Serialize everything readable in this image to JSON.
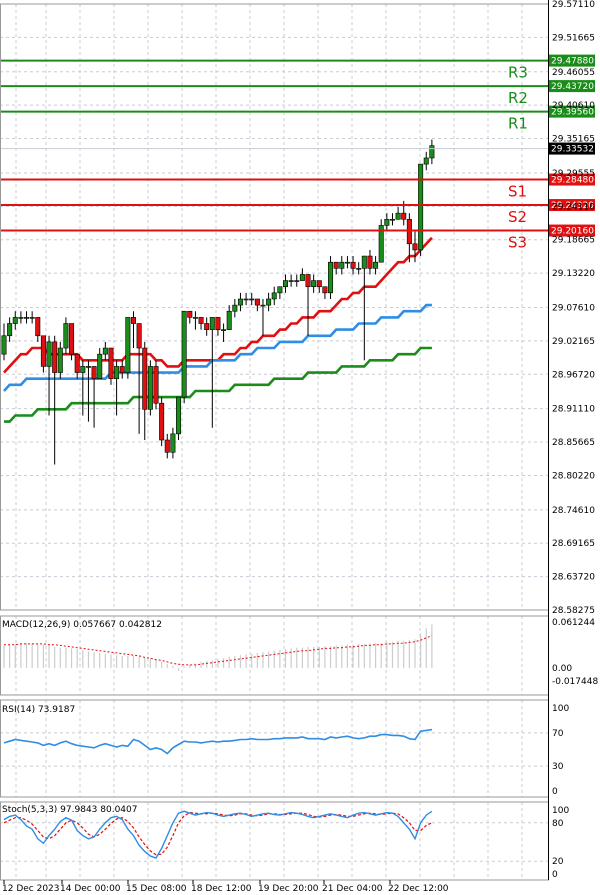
{
  "chart_data": [
    {
      "type": "candlestick",
      "title": "",
      "y_ticks": [
        "29.57110",
        "29.51665",
        "29.46055",
        "29.40610",
        "29.35165",
        "29.29555",
        "29.24110",
        "29.18665",
        "29.13220",
        "29.07610",
        "29.02165",
        "28.96720",
        "28.91110",
        "28.85665",
        "28.80220",
        "28.74610",
        "28.69165",
        "28.63720",
        "28.58275"
      ],
      "ylim": [
        28.58275,
        29.5711
      ],
      "current_price": "29.33532",
      "levels": [
        {
          "label": "R3",
          "value": "29.47880",
          "color": "#1a8c1a"
        },
        {
          "label": "R2",
          "value": "29.43720",
          "color": "#1a8c1a"
        },
        {
          "label": "R1",
          "value": "29.39560",
          "color": "#1a8c1a"
        },
        {
          "label": "S1",
          "value": "29.28480",
          "color": "#e01010"
        },
        {
          "label": "S2",
          "value": "29.24320",
          "color": "#e01010"
        },
        {
          "label": "S3",
          "value": "29.20160",
          "color": "#e01010"
        }
      ],
      "candles": [
        [
          29.0,
          29.03,
          28.99,
          29.05
        ],
        [
          29.03,
          29.05,
          29.02,
          29.06
        ],
        [
          29.05,
          29.06,
          29.04,
          29.07
        ],
        [
          29.06,
          29.06,
          29.05,
          29.07
        ],
        [
          29.06,
          29.06,
          29.05,
          29.07
        ],
        [
          29.06,
          29.06,
          29.05,
          29.07
        ],
        [
          29.06,
          29.03,
          29.02,
          29.06
        ],
        [
          29.03,
          28.98,
          28.97,
          29.03
        ],
        [
          28.98,
          29.02,
          28.9,
          29.03
        ],
        [
          29.02,
          28.97,
          28.82,
          29.03
        ],
        [
          28.97,
          29.01,
          28.96,
          29.02
        ],
        [
          29.01,
          29.05,
          29.0,
          29.06
        ],
        [
          29.05,
          29.0,
          28.99,
          29.05
        ],
        [
          29.0,
          28.97,
          28.96,
          29.0
        ],
        [
          28.97,
          28.98,
          28.9,
          28.99
        ],
        [
          28.98,
          28.98,
          28.89,
          28.99
        ],
        [
          28.98,
          28.96,
          28.88,
          28.98
        ],
        [
          28.96,
          29.0,
          28.96,
          29.01
        ],
        [
          29.0,
          29.01,
          28.99,
          29.02
        ],
        [
          29.01,
          28.96,
          28.95,
          29.01
        ],
        [
          28.96,
          28.98,
          28.9,
          28.99
        ],
        [
          28.98,
          28.97,
          28.96,
          28.99
        ],
        [
          28.97,
          29.06,
          28.96,
          29.06
        ],
        [
          29.06,
          29.05,
          29.01,
          29.07
        ],
        [
          29.05,
          29.01,
          28.87,
          29.05
        ],
        [
          29.01,
          28.91,
          28.86,
          29.02
        ],
        [
          28.91,
          28.98,
          28.9,
          28.99
        ],
        [
          28.98,
          28.92,
          28.91,
          28.99
        ],
        [
          28.92,
          28.86,
          28.85,
          28.93
        ],
        [
          28.86,
          28.84,
          28.83,
          28.87
        ],
        [
          28.84,
          28.87,
          28.83,
          28.88
        ],
        [
          28.87,
          28.93,
          28.86,
          28.93
        ],
        [
          28.93,
          29.07,
          28.92,
          29.07
        ],
        [
          29.07,
          29.06,
          29.05,
          29.07
        ],
        [
          29.06,
          29.06,
          29.04,
          29.07
        ],
        [
          29.06,
          29.05,
          29.04,
          29.06
        ],
        [
          29.05,
          29.04,
          29.03,
          29.06
        ],
        [
          29.04,
          29.06,
          28.88,
          29.06
        ],
        [
          29.06,
          29.04,
          29.03,
          29.06
        ],
        [
          29.04,
          29.04,
          29.02,
          29.05
        ],
        [
          29.04,
          29.07,
          29.04,
          29.08
        ],
        [
          29.07,
          29.08,
          29.06,
          29.09
        ],
        [
          29.08,
          29.09,
          29.07,
          29.1
        ],
        [
          29.09,
          29.09,
          29.08,
          29.1
        ],
        [
          29.09,
          29.09,
          29.08,
          29.1
        ],
        [
          29.09,
          29.08,
          29.07,
          29.09
        ],
        [
          29.08,
          29.08,
          29.03,
          29.09
        ],
        [
          29.08,
          29.09,
          29.07,
          29.1
        ],
        [
          29.09,
          29.1,
          29.08,
          29.11
        ],
        [
          29.1,
          29.11,
          29.09,
          29.11
        ],
        [
          29.11,
          29.12,
          29.1,
          29.13
        ],
        [
          29.12,
          29.12,
          29.11,
          29.13
        ],
        [
          29.12,
          29.12,
          29.11,
          29.13
        ],
        [
          29.12,
          29.13,
          29.12,
          29.14
        ],
        [
          29.13,
          29.11,
          29.03,
          29.13
        ],
        [
          29.11,
          29.12,
          29.1,
          29.13
        ],
        [
          29.12,
          29.11,
          29.1,
          29.12
        ],
        [
          29.11,
          29.1,
          29.09,
          29.11
        ],
        [
          29.1,
          29.15,
          29.09,
          29.16
        ],
        [
          29.15,
          29.14,
          29.13,
          29.15
        ],
        [
          29.14,
          29.15,
          29.13,
          29.16
        ],
        [
          29.15,
          29.15,
          29.14,
          29.16
        ],
        [
          29.15,
          29.14,
          29.13,
          29.16
        ],
        [
          29.14,
          29.14,
          29.13,
          29.15
        ],
        [
          29.14,
          29.16,
          28.99,
          29.16
        ],
        [
          29.16,
          29.14,
          29.13,
          29.17
        ],
        [
          29.14,
          29.15,
          29.13,
          29.16
        ],
        [
          29.15,
          29.21,
          29.15,
          29.22
        ],
        [
          29.21,
          29.22,
          29.2,
          29.23
        ],
        [
          29.22,
          29.22,
          29.21,
          29.23
        ],
        [
          29.22,
          29.23,
          29.22,
          29.24
        ],
        [
          29.23,
          29.22,
          29.21,
          29.25
        ],
        [
          29.22,
          29.18,
          29.15,
          29.23
        ],
        [
          29.18,
          29.17,
          29.15,
          29.2
        ],
        [
          29.17,
          29.31,
          29.16,
          29.31
        ],
        [
          29.31,
          29.32,
          29.3,
          29.33
        ],
        [
          29.32,
          29.34,
          29.31,
          29.35
        ]
      ],
      "ma_series": [
        {
          "color": "#e01010",
          "values": [
            28.97,
            28.98,
            28.99,
            29.0,
            29.0,
            29.01,
            29.01,
            29.01,
            29.0,
            29.0,
            29.0,
            29.0,
            29.0,
            29.0,
            28.99,
            28.99,
            28.99,
            28.99,
            28.99,
            28.99,
            28.99,
            28.99,
            29.0,
            29.0,
            29.0,
            29.0,
            29.0,
            28.99,
            28.99,
            28.98,
            28.98,
            28.98,
            28.99,
            28.99,
            28.99,
            28.99,
            28.99,
            28.99,
            28.99,
            29.0,
            29.0,
            29.0,
            29.01,
            29.01,
            29.02,
            29.02,
            29.03,
            29.03,
            29.03,
            29.04,
            29.04,
            29.05,
            29.05,
            29.06,
            29.06,
            29.06,
            29.07,
            29.07,
            29.07,
            29.08,
            29.09,
            29.09,
            29.1,
            29.1,
            29.11,
            29.11,
            29.11,
            29.12,
            29.13,
            29.14,
            29.15,
            29.15,
            29.16,
            29.16,
            29.17,
            29.18,
            29.19
          ]
        },
        {
          "color": "#2f8de4",
          "values": [
            28.94,
            28.95,
            28.95,
            28.95,
            28.96,
            28.96,
            28.96,
            28.96,
            28.96,
            28.96,
            28.96,
            28.96,
            28.96,
            28.96,
            28.96,
            28.96,
            28.96,
            28.96,
            28.96,
            28.97,
            28.97,
            28.97,
            28.97,
            28.97,
            28.97,
            28.97,
            28.97,
            28.97,
            28.97,
            28.97,
            28.97,
            28.97,
            28.98,
            28.98,
            28.98,
            28.98,
            28.98,
            28.99,
            28.99,
            28.99,
            28.99,
            28.99,
            29.0,
            29.0,
            29.0,
            29.01,
            29.01,
            29.01,
            29.01,
            29.02,
            29.02,
            29.02,
            29.02,
            29.02,
            29.03,
            29.03,
            29.03,
            29.03,
            29.03,
            29.04,
            29.04,
            29.04,
            29.04,
            29.05,
            29.05,
            29.05,
            29.05,
            29.06,
            29.06,
            29.06,
            29.06,
            29.07,
            29.07,
            29.07,
            29.07,
            29.08,
            29.08
          ]
        },
        {
          "color": "#1a8c1a",
          "values": [
            28.89,
            28.89,
            28.9,
            28.9,
            28.9,
            28.9,
            28.91,
            28.91,
            28.91,
            28.91,
            28.91,
            28.91,
            28.92,
            28.92,
            28.92,
            28.92,
            28.92,
            28.92,
            28.92,
            28.92,
            28.92,
            28.92,
            28.92,
            28.93,
            28.93,
            28.93,
            28.93,
            28.93,
            28.93,
            28.93,
            28.93,
            28.93,
            28.93,
            28.93,
            28.94,
            28.94,
            28.94,
            28.94,
            28.94,
            28.94,
            28.94,
            28.95,
            28.95,
            28.95,
            28.95,
            28.95,
            28.95,
            28.95,
            28.96,
            28.96,
            28.96,
            28.96,
            28.96,
            28.96,
            28.97,
            28.97,
            28.97,
            28.97,
            28.97,
            28.97,
            28.98,
            28.98,
            28.98,
            28.98,
            28.98,
            28.99,
            28.99,
            28.99,
            28.99,
            28.99,
            29.0,
            29.0,
            29.0,
            29.0,
            29.01,
            29.01,
            29.01
          ]
        }
      ]
    },
    {
      "type": "bar",
      "title": "MACD(12,26,9) 0.057667 0.042812",
      "y_ticks": [
        "0.061244",
        "0.00",
        "-0.017448"
      ],
      "ylim": [
        -0.017448,
        0.061244
      ],
      "bar_color": "#cccccc",
      "signal_color": "#e01010",
      "macd": [
        0.03,
        0.031,
        0.032,
        0.033,
        0.033,
        0.033,
        0.032,
        0.031,
        0.03,
        0.028,
        0.027,
        0.027,
        0.026,
        0.025,
        0.024,
        0.022,
        0.021,
        0.02,
        0.019,
        0.018,
        0.017,
        0.016,
        0.016,
        0.016,
        0.015,
        0.014,
        0.013,
        0.011,
        0.008,
        0.005,
        0.003,
        -0.004,
        0.002,
        0.004,
        0.006,
        0.008,
        0.009,
        0.01,
        0.012,
        0.013,
        0.015,
        0.016,
        0.017,
        0.018,
        0.019,
        0.02,
        0.021,
        0.022,
        0.023,
        0.024,
        0.025,
        0.026,
        0.027,
        0.027,
        0.028,
        0.028,
        0.028,
        0.029,
        0.029,
        0.03,
        0.03,
        0.031,
        0.031,
        0.032,
        0.032,
        0.032,
        0.033,
        0.033,
        0.034,
        0.035,
        0.036,
        0.036,
        0.037,
        0.038,
        0.046,
        0.053,
        0.058
      ],
      "signal": [
        0.031,
        0.031,
        0.031,
        0.032,
        0.032,
        0.032,
        0.032,
        0.032,
        0.031,
        0.031,
        0.03,
        0.029,
        0.028,
        0.027,
        0.026,
        0.025,
        0.024,
        0.023,
        0.022,
        0.021,
        0.02,
        0.019,
        0.018,
        0.017,
        0.016,
        0.014,
        0.013,
        0.011,
        0.01,
        0.008,
        0.006,
        0.005,
        0.004,
        0.004,
        0.004,
        0.005,
        0.006,
        0.007,
        0.008,
        0.009,
        0.01,
        0.011,
        0.012,
        0.013,
        0.014,
        0.015,
        0.016,
        0.017,
        0.018,
        0.019,
        0.02,
        0.021,
        0.022,
        0.023,
        0.023,
        0.024,
        0.025,
        0.026,
        0.026,
        0.027,
        0.027,
        0.028,
        0.028,
        0.029,
        0.03,
        0.03,
        0.031,
        0.031,
        0.032,
        0.032,
        0.033,
        0.033,
        0.034,
        0.035,
        0.037,
        0.04,
        0.043
      ]
    },
    {
      "type": "line",
      "title": "RSI(14) 73.9187",
      "y_ticks": [
        "100",
        "70",
        "30",
        "0"
      ],
      "ylim": [
        0,
        100
      ],
      "color": "#2f8de4",
      "values": [
        58,
        60,
        62,
        61,
        60,
        59,
        58,
        55,
        57,
        55,
        58,
        60,
        57,
        55,
        54,
        53,
        52,
        55,
        57,
        55,
        53,
        55,
        54,
        62,
        60,
        55,
        50,
        52,
        50,
        45,
        52,
        56,
        60,
        59,
        59,
        58,
        59,
        60,
        59,
        60,
        60,
        61,
        62,
        62,
        63,
        62,
        62,
        62,
        63,
        63,
        64,
        64,
        64,
        65,
        63,
        63,
        63,
        62,
        65,
        64,
        65,
        66,
        64,
        63,
        64,
        66,
        66,
        68,
        68,
        67,
        67,
        66,
        63,
        62,
        72,
        73,
        74
      ]
    },
    {
      "type": "line",
      "title": "Stoch(5,3,3) 97.9843 80.0407",
      "y_ticks": [
        "100",
        "80",
        "20",
        "0"
      ],
      "ylim": [
        0,
        100
      ],
      "k_color": "#2f8de4",
      "d_color": "#e01010",
      "k": [
        85,
        90,
        92,
        85,
        75,
        70,
        55,
        48,
        60,
        70,
        82,
        88,
        84,
        68,
        60,
        55,
        58,
        70,
        80,
        88,
        90,
        85,
        70,
        60,
        45,
        35,
        28,
        25,
        40,
        60,
        80,
        95,
        98,
        95,
        92,
        94,
        96,
        95,
        92,
        90,
        92,
        94,
        95,
        93,
        90,
        92,
        94,
        95,
        93,
        92,
        94,
        96,
        95,
        93,
        90,
        88,
        90,
        92,
        94,
        92,
        90,
        88,
        92,
        95,
        96,
        94,
        92,
        94,
        96,
        95,
        90,
        80,
        70,
        55,
        80,
        92,
        98
      ],
      "d": [
        80,
        84,
        88,
        88,
        84,
        78,
        68,
        58,
        55,
        60,
        70,
        80,
        84,
        80,
        72,
        62,
        58,
        62,
        70,
        79,
        86,
        88,
        82,
        72,
        58,
        46,
        36,
        30,
        31,
        42,
        60,
        80,
        91,
        96,
        95,
        94,
        94,
        95,
        94,
        92,
        91,
        92,
        94,
        94,
        92,
        91,
        92,
        94,
        94,
        93,
        93,
        94,
        95,
        95,
        93,
        90,
        89,
        90,
        92,
        93,
        92,
        90,
        90,
        92,
        94,
        95,
        94,
        93,
        94,
        95,
        94,
        88,
        80,
        68,
        68,
        76,
        80
      ]
    }
  ],
  "x_ticks": [
    "12 Dec 2023",
    "14 Dec 00:00",
    "15 Dec 08:00",
    "18 Dec 12:00",
    "19 Dec 20:00",
    "21 Dec 04:00",
    "22 Dec 12:00"
  ],
  "colors": {
    "up": "#1a8c1a",
    "down": "#e01010",
    "grid": "#c8cdd6",
    "axis": "#000000",
    "price_tag": "#000000"
  }
}
